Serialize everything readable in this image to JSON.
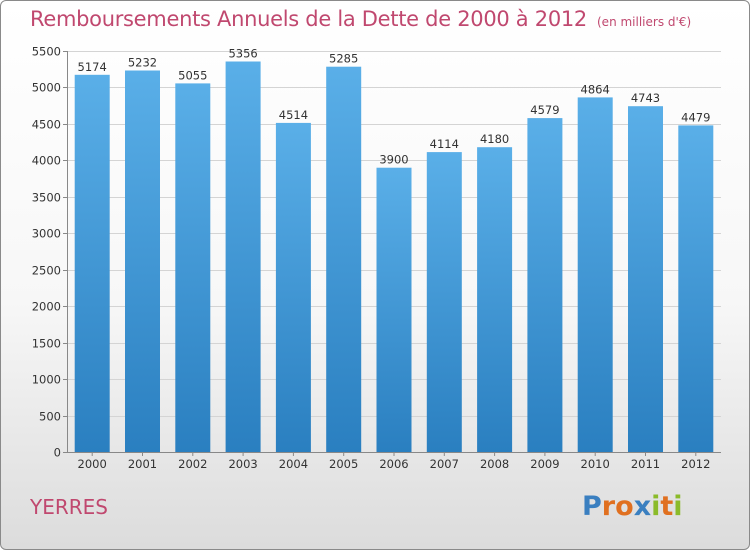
{
  "header": {
    "title": "Remboursements Annuels de la Dette de 2000 à 2012",
    "subtitle": "(en milliers d'€)"
  },
  "footer": {
    "city": "YERRES",
    "brand": {
      "text": "Proxiti",
      "letters": [
        "P",
        "r",
        "o",
        "x",
        "i",
        "t",
        "i"
      ]
    }
  },
  "colors": {
    "title": "#c0486f",
    "bar_top": "#5aafe8",
    "bar_bottom": "#2a7fc0",
    "brand_letters": [
      "#3a7fc0",
      "#e07020",
      "#e07020",
      "#3a7fc0",
      "#8bbb2a",
      "#e07020",
      "#8bbb2a"
    ]
  },
  "chart_data": {
    "type": "bar",
    "title": "Remboursements Annuels de la Dette de 2000 à 2012",
    "categories": [
      "2000",
      "2001",
      "2002",
      "2003",
      "2004",
      "2005",
      "2006",
      "2007",
      "2008",
      "2009",
      "2010",
      "2011",
      "2012"
    ],
    "values": [
      5174,
      5232,
      5055,
      5356,
      4514,
      5285,
      3900,
      4114,
      4180,
      4579,
      4864,
      4743,
      4479
    ],
    "ylim": [
      0,
      5500
    ],
    "yticks": [
      0,
      500,
      1000,
      1500,
      2000,
      2500,
      3000,
      3500,
      4000,
      4500,
      5000,
      5500
    ],
    "grid": true,
    "data_labels": true
  }
}
